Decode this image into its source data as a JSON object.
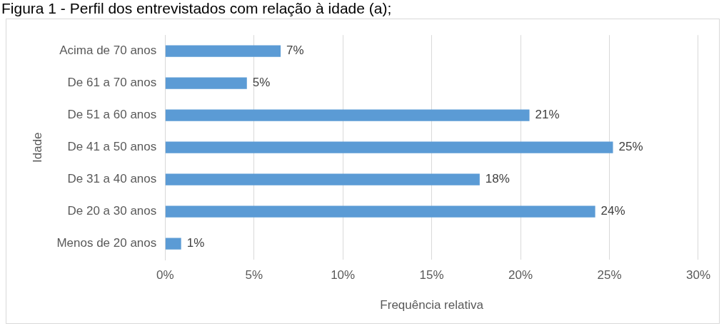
{
  "chart_data": {
    "type": "bar",
    "orientation": "horizontal",
    "title": "Figura 1 - Perfil dos entrevistados com relação à idade (a);",
    "xlabel": "Frequência relativa",
    "ylabel": "Idade",
    "categories": [
      "Acima de 70 anos",
      "De 61 a 70 anos",
      "De 51 a 60 anos",
      "De 41 a 50 anos",
      "De 31 a 40 anos",
      "De 20 a 30 anos",
      "Menos de 20 anos"
    ],
    "values": [
      6.5,
      4.6,
      20.5,
      25.2,
      17.7,
      24.2,
      0.9
    ],
    "value_labels": [
      "7%",
      "5%",
      "21%",
      "25%",
      "18%",
      "24%",
      "1%"
    ],
    "color": "#5b9bd5",
    "xlim": [
      0,
      30
    ],
    "xticks": [
      {
        "value": 0,
        "label": "0%"
      },
      {
        "value": 5,
        "label": "5%"
      },
      {
        "value": 10,
        "label": "10%"
      },
      {
        "value": 15,
        "label": "15%"
      },
      {
        "value": 20,
        "label": "20%"
      },
      {
        "value": 25,
        "label": "25%"
      },
      {
        "value": 30,
        "label": "30%"
      }
    ],
    "grid": "x",
    "legend": false
  }
}
